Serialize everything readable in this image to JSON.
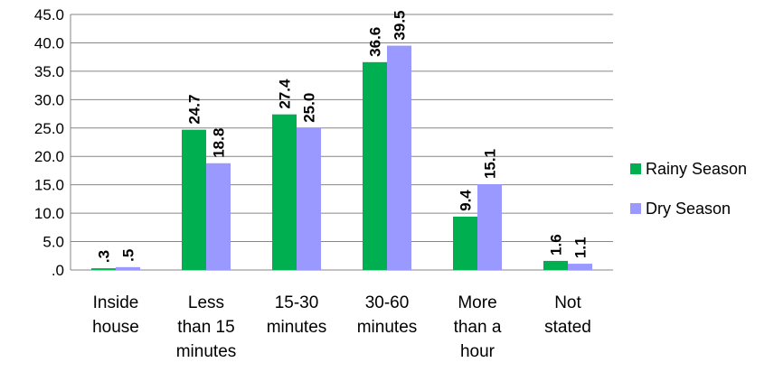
{
  "chart_data": {
    "type": "bar",
    "title": "",
    "xlabel": "",
    "ylabel": "",
    "categories": [
      [
        "Inside",
        "house"
      ],
      [
        "Less",
        "than 15",
        "minutes"
      ],
      [
        "15-30",
        "minutes"
      ],
      [
        "30-60",
        "minutes"
      ],
      [
        "More",
        "than a",
        "hour"
      ],
      [
        "Not",
        "stated"
      ]
    ],
    "series": [
      {
        "name": "Rainy Season",
        "color": "#00b050",
        "values": [
          0.3,
          24.7,
          27.4,
          36.6,
          9.4,
          1.6
        ],
        "labels": [
          ".3",
          "24.7",
          "27.4",
          "36.6",
          "9.4",
          "1.6"
        ]
      },
      {
        "name": "Dry Season",
        "color": "#9999ff",
        "values": [
          0.5,
          18.8,
          25.0,
          39.5,
          15.1,
          1.1
        ],
        "labels": [
          ".5",
          "18.8",
          "25.0",
          "39.5",
          "15.1",
          "1.1"
        ]
      }
    ],
    "ylim": [
      0,
      45
    ],
    "yticks": [
      ".0",
      "5.0",
      "10.0",
      "15.0",
      "20.0",
      "25.0",
      "30.0",
      "35.0",
      "40.0",
      "45.0"
    ],
    "grid": true,
    "legend_position": "right"
  }
}
